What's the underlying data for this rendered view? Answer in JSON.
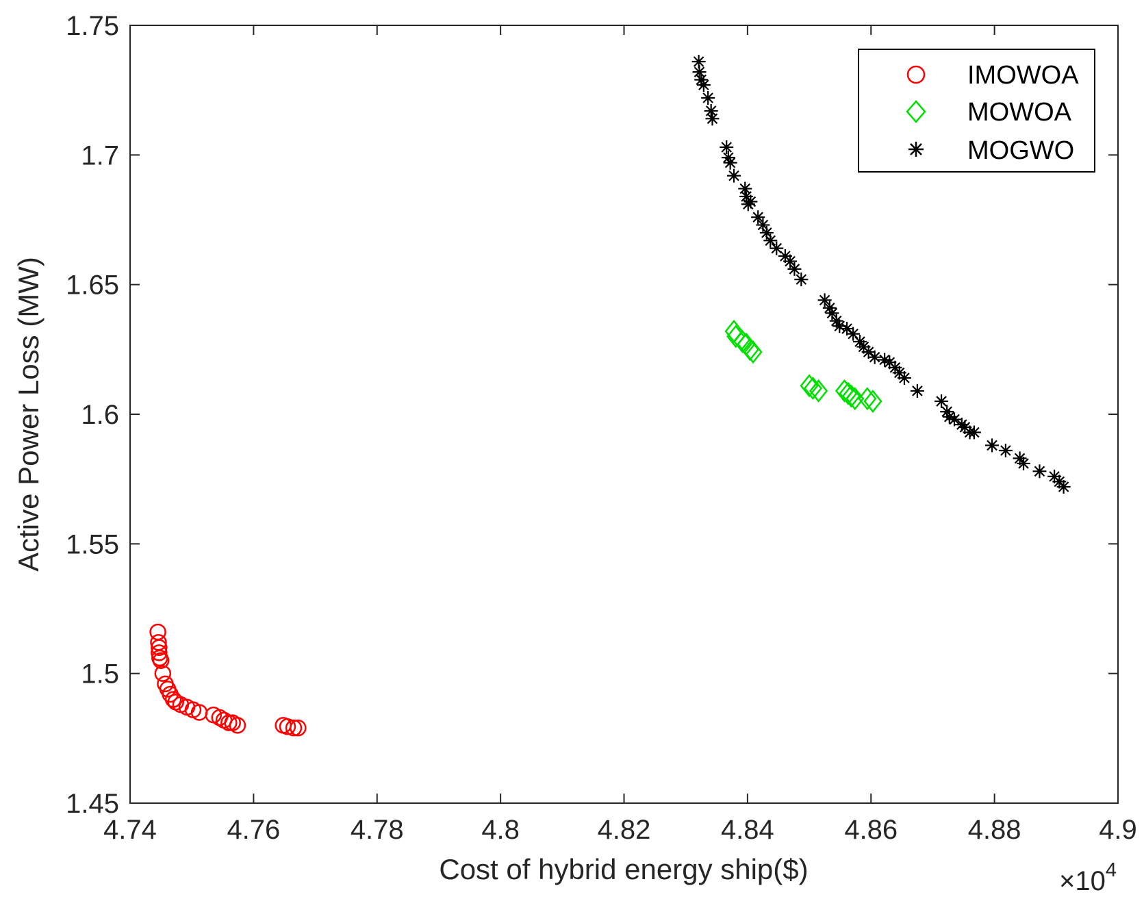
{
  "chart_data": {
    "type": "scatter",
    "xlabel": "Cost of hybrid energy ship($)",
    "ylabel": "Active Power Loss (MW)",
    "x_multiplier": "×10",
    "x_multiplier_exp": "4",
    "xlim": [
      4.74,
      4.9
    ],
    "ylim": [
      1.45,
      1.75
    ],
    "x_ticks": [
      "4.74",
      "4.76",
      "4.78",
      "4.8",
      "4.82",
      "4.84",
      "4.86",
      "4.88",
      "4.9"
    ],
    "y_ticks": [
      "1.45",
      "1.5",
      "1.55",
      "1.6",
      "1.65",
      "1.7",
      "1.75"
    ],
    "legend_position": "top-right",
    "series": [
      {
        "name": "IMOWOA",
        "marker": "circle",
        "color": "#ff0000",
        "points": [
          [
            4.7445,
            1.516
          ],
          [
            4.7446,
            1.512
          ],
          [
            4.7447,
            1.51
          ],
          [
            4.7447,
            1.508
          ],
          [
            4.7448,
            1.506
          ],
          [
            4.745,
            1.505
          ],
          [
            4.7453,
            1.5
          ],
          [
            4.7457,
            1.496
          ],
          [
            4.7461,
            1.494
          ],
          [
            4.7465,
            1.492
          ],
          [
            4.747,
            1.49
          ],
          [
            4.7474,
            1.489
          ],
          [
            4.7482,
            1.488
          ],
          [
            4.7492,
            1.487
          ],
          [
            4.7502,
            1.486
          ],
          [
            4.7512,
            1.485
          ],
          [
            4.7535,
            1.484
          ],
          [
            4.7545,
            1.483
          ],
          [
            4.7552,
            1.482
          ],
          [
            4.756,
            1.481
          ],
          [
            4.7566,
            1.481
          ],
          [
            4.7574,
            1.48
          ],
          [
            4.7648,
            1.48
          ],
          [
            4.7655,
            1.4795
          ],
          [
            4.7665,
            1.479
          ],
          [
            4.7672,
            1.479
          ]
        ]
      },
      {
        "name": "MOWOA",
        "marker": "diamond",
        "color": "#00e000",
        "points": [
          [
            4.8378,
            1.632
          ],
          [
            4.8381,
            1.63
          ],
          [
            4.8392,
            1.628
          ],
          [
            4.8398,
            1.627
          ],
          [
            4.8404,
            1.625
          ],
          [
            4.8409,
            1.624
          ],
          [
            4.85,
            1.611
          ],
          [
            4.8506,
            1.61
          ],
          [
            4.8515,
            1.609
          ],
          [
            4.8557,
            1.609
          ],
          [
            4.8563,
            1.608
          ],
          [
            4.8568,
            1.607
          ],
          [
            4.8574,
            1.606
          ],
          [
            4.8594,
            1.606
          ],
          [
            4.8603,
            1.605
          ]
        ]
      },
      {
        "name": "MOGWO",
        "marker": "asterisk",
        "color": "#000000",
        "points": [
          [
            4.8321,
            1.736
          ],
          [
            4.8322,
            1.732
          ],
          [
            4.8325,
            1.729
          ],
          [
            4.8329,
            1.727
          ],
          [
            4.8336,
            1.722
          ],
          [
            4.8341,
            1.717
          ],
          [
            4.8343,
            1.714
          ],
          [
            4.8366,
            1.703
          ],
          [
            4.8369,
            1.699
          ],
          [
            4.8372,
            1.697
          ],
          [
            4.8378,
            1.692
          ],
          [
            4.8396,
            1.687
          ],
          [
            4.8398,
            1.684
          ],
          [
            4.8401,
            1.681
          ],
          [
            4.8405,
            1.682
          ],
          [
            4.8417,
            1.676
          ],
          [
            4.8425,
            1.673
          ],
          [
            4.8431,
            1.67
          ],
          [
            4.8437,
            1.667
          ],
          [
            4.8447,
            1.664
          ],
          [
            4.8461,
            1.661
          ],
          [
            4.8469,
            1.659
          ],
          [
            4.8476,
            1.656
          ],
          [
            4.8487,
            1.652
          ],
          [
            4.8525,
            1.644
          ],
          [
            4.8533,
            1.641
          ],
          [
            4.8537,
            1.639
          ],
          [
            4.8544,
            1.636
          ],
          [
            4.8549,
            1.634
          ],
          [
            4.8561,
            1.633
          ],
          [
            4.8571,
            1.631
          ],
          [
            4.8582,
            1.628
          ],
          [
            4.8588,
            1.626
          ],
          [
            4.8596,
            1.624
          ],
          [
            4.8606,
            1.622
          ],
          [
            4.8622,
            1.621
          ],
          [
            4.863,
            1.62
          ],
          [
            4.8639,
            1.618
          ],
          [
            4.8646,
            1.616
          ],
          [
            4.8654,
            1.614
          ],
          [
            4.8675,
            1.609
          ],
          [
            4.8714,
            1.605
          ],
          [
            4.8723,
            1.601
          ],
          [
            4.8727,
            1.599
          ],
          [
            4.8735,
            1.598
          ],
          [
            4.8747,
            1.596
          ],
          [
            4.8752,
            1.595
          ],
          [
            4.876,
            1.593
          ],
          [
            4.8767,
            1.593
          ],
          [
            4.8796,
            1.588
          ],
          [
            4.8818,
            1.586
          ],
          [
            4.8841,
            1.583
          ],
          [
            4.8847,
            1.581
          ],
          [
            4.8873,
            1.578
          ],
          [
            4.8897,
            1.576
          ],
          [
            4.8905,
            1.574
          ],
          [
            4.8912,
            1.572
          ]
        ]
      }
    ]
  }
}
